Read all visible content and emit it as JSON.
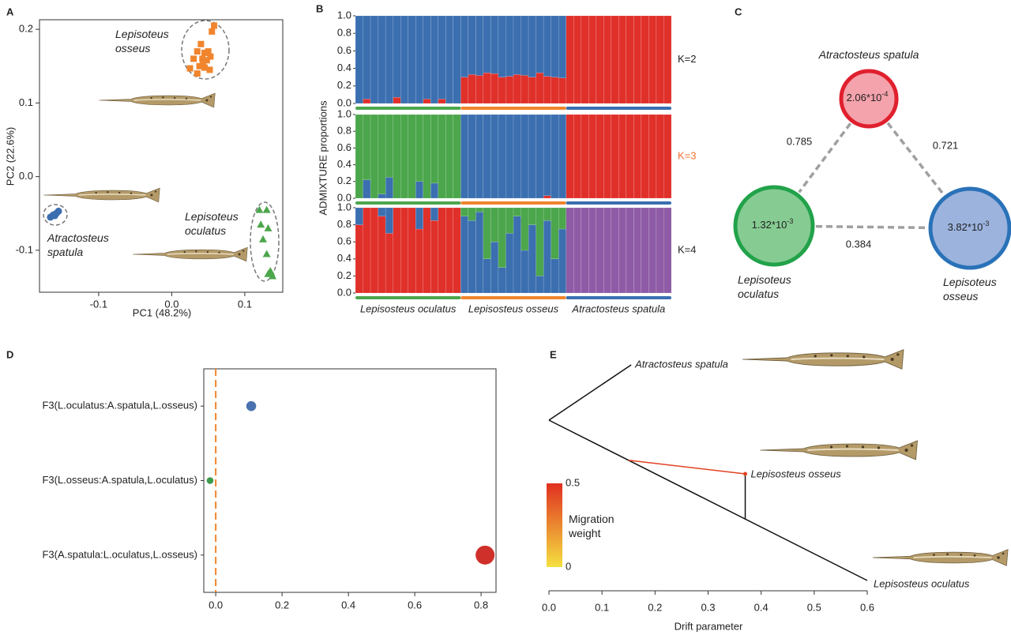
{
  "panel_labels": [
    "A",
    "B",
    "C",
    "D",
    "E"
  ],
  "chart_data": [
    {
      "type": "scatter",
      "xlabel": "PC1 (48.2%)",
      "ylabel": "PC2 (22.6%)",
      "xlim": [
        -0.181,
        0.152
      ],
      "ylim": [
        -0.157,
        0.213
      ],
      "xticks": [
        -0.1,
        {
          "value": 0,
          "label": "0.0"
        },
        0.1
      ],
      "yticks": [
        -0.1,
        {
          "value": 0,
          "label": "0.0"
        },
        0.1,
        0.2
      ],
      "series": [
        {
          "name": "Lepisoteus osseus",
          "color": "#f0852d",
          "marker": "square",
          "x": [
            0.055,
            0.058,
            0.04,
            0.035,
            0.045,
            0.05,
            0.03,
            0.042,
            0.048,
            0.053,
            0.038,
            0.045,
            0.025,
            0.052,
            0.035,
            0.043
          ],
          "y": [
            0.197,
            0.205,
            0.18,
            0.17,
            0.168,
            0.17,
            0.16,
            0.16,
            0.158,
            0.163,
            0.15,
            0.148,
            0.147,
            0.145,
            0.14,
            0.155
          ]
        },
        {
          "name": "Atractosteus spatula",
          "color": "#3b6fb0",
          "marker": "circle",
          "x": [
            -0.166,
            -0.162,
            -0.158,
            -0.155,
            -0.16
          ],
          "y": [
            -0.055,
            -0.052,
            -0.05,
            -0.047,
            -0.053
          ]
        },
        {
          "name": "Lepisoteus oculatus",
          "color": "#4ca64c",
          "marker": "triangle",
          "x": [
            0.12,
            0.13,
            0.122,
            0.132,
            0.125,
            0.13,
            0.135,
            0.132,
            0.138,
            0.136
          ],
          "y": [
            -0.045,
            -0.045,
            -0.065,
            -0.07,
            -0.085,
            -0.105,
            -0.128,
            -0.132,
            -0.135,
            -0.13
          ]
        }
      ]
    },
    {
      "type": "bar",
      "stacked": true,
      "title": "K=2",
      "ylim": [
        0,
        1
      ],
      "yticks": [
        {
          "value": 0,
          "label": "0.0"
        },
        0.2,
        0.4,
        0.6,
        0.8,
        {
          "value": 1,
          "label": "1.0"
        }
      ],
      "series": [
        {
          "color": "#e0302a",
          "values": [
            0,
            0.05,
            0,
            0,
            0,
            0.07,
            0,
            0,
            0,
            0.05,
            0,
            0.05,
            0,
            0,
            0.3,
            0.33,
            0.32,
            0.35,
            0.34,
            0.3,
            0.31,
            0.33,
            0.32,
            0.3,
            0.35,
            0.31,
            0.3,
            0.29,
            1,
            1,
            1,
            1,
            1,
            1,
            1,
            1,
            1,
            1,
            1,
            1,
            1,
            1
          ]
        },
        {
          "color": "#3b6fb0",
          "values": [
            1,
            0.95,
            1,
            1,
            1,
            0.93,
            1,
            1,
            1,
            0.95,
            1,
            0.95,
            1,
            1,
            0.7,
            0.67,
            0.68,
            0.65,
            0.66,
            0.7,
            0.69,
            0.67,
            0.68,
            0.7,
            0.65,
            0.69,
            0.7,
            0.71,
            0,
            0,
            0,
            0,
            0,
            0,
            0,
            0,
            0,
            0,
            0,
            0,
            0,
            0
          ]
        }
      ]
    },
    {
      "type": "bar",
      "stacked": true,
      "title": "K=3",
      "title_color": "#f07030",
      "ylabel": "ADMIXTURE proportions",
      "ylim": [
        0,
        1
      ],
      "yticks": [
        {
          "value": 0,
          "label": "0.0"
        },
        0.2,
        0.4,
        0.6,
        0.8,
        {
          "value": 1,
          "label": "1.0"
        }
      ],
      "series": [
        {
          "color": "#e0302a",
          "values": [
            0,
            0,
            0,
            0,
            0,
            0,
            0,
            0,
            0,
            0,
            0,
            0,
            0,
            0,
            0,
            0,
            0,
            0,
            0,
            0,
            0,
            0,
            0,
            0,
            0,
            0.03,
            0,
            0,
            1,
            1,
            1,
            1,
            1,
            1,
            1,
            1,
            1,
            1,
            1,
            1,
            1,
            1
          ]
        },
        {
          "color": "#3b6fb0",
          "values": [
            0,
            0.22,
            0,
            0.05,
            0.25,
            0,
            0,
            0,
            0.2,
            0,
            0.18,
            0,
            0,
            0,
            1,
            1,
            1,
            1,
            1,
            1,
            1,
            1,
            1,
            1,
            1,
            0.97,
            1,
            1,
            0,
            0,
            0,
            0,
            0,
            0,
            0,
            0,
            0,
            0,
            0,
            0,
            0,
            0
          ]
        },
        {
          "color": "#4ca64c",
          "values": [
            1,
            0.78,
            1,
            0.95,
            0.75,
            1,
            1,
            1,
            0.8,
            1,
            0.82,
            1,
            1,
            1,
            0,
            0,
            0,
            0,
            0,
            0,
            0,
            0,
            0,
            0,
            0,
            0,
            0,
            0,
            0,
            0,
            0,
            0,
            0,
            0,
            0,
            0,
            0,
            0,
            0,
            0,
            0,
            0
          ]
        }
      ]
    },
    {
      "type": "bar",
      "stacked": true,
      "title": "K=4",
      "ylim": [
        0,
        1
      ],
      "yticks": [
        {
          "value": 0,
          "label": "0.0"
        },
        0.2,
        0.4,
        0.6,
        0.8,
        {
          "value": 1,
          "label": "1.0"
        }
      ],
      "series": [
        {
          "color": "#e0302a",
          "values": [
            0.8,
            1,
            1,
            0.9,
            0.7,
            1,
            1,
            1,
            0.75,
            1,
            0.85,
            1,
            1,
            1,
            0,
            0,
            0,
            0,
            0,
            0,
            0,
            0,
            0,
            0,
            0,
            0,
            0,
            0,
            0,
            0,
            0,
            0,
            0,
            0,
            0,
            0,
            0,
            0,
            0,
            0,
            0,
            0
          ]
        },
        {
          "color": "#3b6fb0",
          "values": [
            0.2,
            0,
            0,
            0.1,
            0.3,
            0,
            0,
            0,
            0.25,
            0,
            0.15,
            0,
            0,
            0,
            0.9,
            0.85,
            0.95,
            0.4,
            0.6,
            0.3,
            0.7,
            0.9,
            0.5,
            0.8,
            0.2,
            0.85,
            0.4,
            0.75,
            0,
            0,
            0,
            0,
            0,
            0,
            0,
            0,
            0,
            0,
            0,
            0,
            0,
            0
          ]
        },
        {
          "color": "#4ca64c",
          "values": [
            0,
            0,
            0,
            0,
            0,
            0,
            0,
            0,
            0,
            0,
            0,
            0,
            0,
            0,
            0.1,
            0.15,
            0.05,
            0.6,
            0.4,
            0.7,
            0.3,
            0.1,
            0.5,
            0.2,
            0.8,
            0.15,
            0.6,
            0.25,
            0,
            0,
            0,
            0,
            0,
            0,
            0,
            0,
            0,
            0,
            0,
            0,
            0,
            0
          ]
        },
        {
          "color": "#8e5ba6",
          "values": [
            0,
            0,
            0,
            0,
            0,
            0,
            0,
            0,
            0,
            0,
            0,
            0,
            0,
            0,
            0,
            0,
            0,
            0,
            0,
            0,
            0,
            0,
            0,
            0,
            0,
            0,
            0,
            0,
            1,
            1,
            1,
            1,
            1,
            1,
            1,
            1,
            1,
            1,
            1,
            1,
            1,
            1
          ]
        }
      ],
      "groups": [
        {
          "name": "Lepisosteus oculatus",
          "color": "#4ca64c"
        },
        {
          "name": "Lepisosteus osseus",
          "color": "#f0852d"
        },
        {
          "name": "Atractosteus spatula",
          "color": "#3b6fb0"
        }
      ]
    },
    {
      "type": "network",
      "nodes": [
        {
          "name": "Atractosteus spatula",
          "value_label": [
            "2.06*10",
            "-4"
          ],
          "color": "#e0202e",
          "fill": "#f4a2ab"
        },
        {
          "name": "Lepisoteus oculatus",
          "value_label": [
            "1.32*10",
            "-3"
          ],
          "color": "#22a24a",
          "fill": "#86cc92"
        },
        {
          "name": "Lepisoteus osseus",
          "value_label": [
            "3.82*10",
            "-3"
          ],
          "color": "#2a72b8",
          "fill": "#9cb3de"
        }
      ],
      "edge_values": [
        0.785,
        0.721,
        0.384
      ]
    },
    {
      "type": "dot",
      "categories": [
        "F3(L.oculatus:A.spatula,L.osseus)",
        "F3(L.osseus:A.spatula,L.oculatus)",
        "F3(A.spatula:L.oculatus,L.osseus)"
      ],
      "values": [
        0.107,
        -0.017,
        0.812
      ],
      "colors": [
        "#4a72b0",
        "#3c9a4c",
        "#d0302a"
      ],
      "xlim": [
        -0.036,
        0.845
      ],
      "xticks": [
        {
          "value": 0,
          "label": "0.0"
        },
        0.2,
        0.4,
        0.6,
        0.8
      ],
      "reference_line": 0,
      "reference_color": "#f0852d"
    },
    {
      "type": "tree",
      "xlabel": "Drift parameter",
      "xlim": [
        0,
        0.6
      ],
      "xticks": [
        {
          "value": 0,
          "label": "0.0"
        },
        0.1,
        0.2,
        0.3,
        0.4,
        0.5,
        0.6
      ],
      "tips": [
        {
          "name": "Atractosteus spatula",
          "x": 0.155
        },
        {
          "name": "Lepisosteus osseus",
          "x": 0.37
        },
        {
          "name": "Lepisosteus oculatus",
          "x": 0.6
        }
      ],
      "migration": {
        "from_x": 0.15,
        "weight": 0.45
      },
      "colorbar": {
        "label": "Migration weight",
        "range": [
          0,
          0.5
        ],
        "ticks": [
          0,
          0.5
        ],
        "colors": [
          "#f5e040",
          "#e03020"
        ]
      }
    }
  ]
}
